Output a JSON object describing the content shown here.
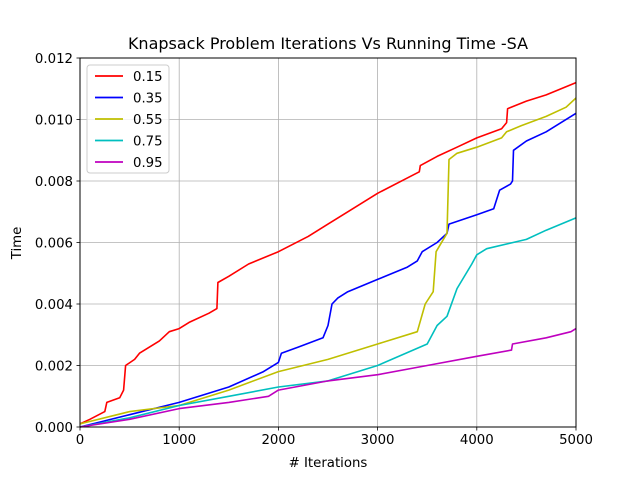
{
  "chart_data": {
    "type": "line",
    "title": "Knapsack Problem Iterations Vs Running Time -SA",
    "xlabel": "# Iterations",
    "ylabel": "Time",
    "xlim": [
      0,
      5000
    ],
    "ylim": [
      0,
      0.012
    ],
    "xticks": [
      "0",
      "1000",
      "2000",
      "3000",
      "4000",
      "5000"
    ],
    "yticks": [
      "0.000",
      "0.002",
      "0.004",
      "0.006",
      "0.008",
      "0.010",
      "0.012"
    ],
    "grid": true,
    "legend_position": "top-left",
    "series": [
      {
        "name": "0.15",
        "color": "#ff0000",
        "points": [
          [
            0,
            0.0001
          ],
          [
            100,
            0.00025
          ],
          [
            250,
            0.0005
          ],
          [
            270,
            0.0008
          ],
          [
            400,
            0.00095
          ],
          [
            440,
            0.0012
          ],
          [
            460,
            0.002
          ],
          [
            550,
            0.0022
          ],
          [
            600,
            0.0024
          ],
          [
            800,
            0.0028
          ],
          [
            900,
            0.0031
          ],
          [
            1000,
            0.0032
          ],
          [
            1100,
            0.0034
          ],
          [
            1300,
            0.0037
          ],
          [
            1380,
            0.00385
          ],
          [
            1390,
            0.0047
          ],
          [
            1500,
            0.0049
          ],
          [
            1700,
            0.0053
          ],
          [
            2000,
            0.0057
          ],
          [
            2300,
            0.0062
          ],
          [
            2500,
            0.0066
          ],
          [
            2700,
            0.007
          ],
          [
            3000,
            0.0076
          ],
          [
            3300,
            0.0081
          ],
          [
            3420,
            0.0083
          ],
          [
            3430,
            0.0085
          ],
          [
            3600,
            0.0088
          ],
          [
            3800,
            0.0091
          ],
          [
            4000,
            0.0094
          ],
          [
            4250,
            0.0097
          ],
          [
            4300,
            0.0099
          ],
          [
            4310,
            0.01035
          ],
          [
            4500,
            0.0106
          ],
          [
            4700,
            0.0108
          ],
          [
            5000,
            0.0112
          ]
        ]
      },
      {
        "name": "0.35",
        "color": "#0000ff",
        "points": [
          [
            0,
            0
          ],
          [
            500,
            0.0004
          ],
          [
            1000,
            0.0008
          ],
          [
            1500,
            0.0013
          ],
          [
            1850,
            0.0018
          ],
          [
            2000,
            0.0021
          ],
          [
            2030,
            0.0024
          ],
          [
            2200,
            0.0026
          ],
          [
            2450,
            0.0029
          ],
          [
            2500,
            0.0033
          ],
          [
            2540,
            0.004
          ],
          [
            2600,
            0.0042
          ],
          [
            2700,
            0.0044
          ],
          [
            3000,
            0.0048
          ],
          [
            3300,
            0.0052
          ],
          [
            3400,
            0.0054
          ],
          [
            3450,
            0.0057
          ],
          [
            3600,
            0.006
          ],
          [
            3700,
            0.0063
          ],
          [
            3720,
            0.0066
          ],
          [
            4000,
            0.0069
          ],
          [
            4170,
            0.0071
          ],
          [
            4230,
            0.0077
          ],
          [
            4340,
            0.0079
          ],
          [
            4360,
            0.008
          ],
          [
            4370,
            0.009
          ],
          [
            4500,
            0.0093
          ],
          [
            4700,
            0.0096
          ],
          [
            5000,
            0.0102
          ]
        ]
      },
      {
        "name": "0.55",
        "color": "#bfbf00",
        "points": [
          [
            0,
            0.0001
          ],
          [
            500,
            0.0005
          ],
          [
            1000,
            0.0007
          ],
          [
            1500,
            0.0012
          ],
          [
            2000,
            0.0018
          ],
          [
            2500,
            0.0022
          ],
          [
            3000,
            0.0027
          ],
          [
            3400,
            0.0031
          ],
          [
            3480,
            0.004
          ],
          [
            3560,
            0.0044
          ],
          [
            3590,
            0.0057
          ],
          [
            3700,
            0.0063
          ],
          [
            3720,
            0.0087
          ],
          [
            3800,
            0.0089
          ],
          [
            4000,
            0.0091
          ],
          [
            4250,
            0.0094
          ],
          [
            4300,
            0.0096
          ],
          [
            4450,
            0.0098
          ],
          [
            4700,
            0.0101
          ],
          [
            4900,
            0.0104
          ],
          [
            5000,
            0.0107
          ]
        ]
      },
      {
        "name": "0.75",
        "color": "#00bfbf",
        "points": [
          [
            0,
            0
          ],
          [
            500,
            0.0003
          ],
          [
            1000,
            0.0007
          ],
          [
            1500,
            0.001
          ],
          [
            2000,
            0.0013
          ],
          [
            2500,
            0.0015
          ],
          [
            3000,
            0.002
          ],
          [
            3500,
            0.0027
          ],
          [
            3600,
            0.0033
          ],
          [
            3700,
            0.0036
          ],
          [
            3800,
            0.0045
          ],
          [
            3950,
            0.0053
          ],
          [
            4000,
            0.0056
          ],
          [
            4100,
            0.0058
          ],
          [
            4500,
            0.0061
          ],
          [
            4700,
            0.0064
          ],
          [
            5000,
            0.0068
          ]
        ]
      },
      {
        "name": "0.95",
        "color": "#bf00bf",
        "points": [
          [
            0,
            0
          ],
          [
            500,
            0.00025
          ],
          [
            1000,
            0.0006
          ],
          [
            1500,
            0.0008
          ],
          [
            1900,
            0.001
          ],
          [
            2000,
            0.0012
          ],
          [
            2500,
            0.0015
          ],
          [
            3000,
            0.0017
          ],
          [
            3500,
            0.002
          ],
          [
            4000,
            0.0023
          ],
          [
            4350,
            0.0025
          ],
          [
            4360,
            0.0027
          ],
          [
            4700,
            0.0029
          ],
          [
            4950,
            0.0031
          ],
          [
            5000,
            0.0032
          ]
        ]
      }
    ]
  }
}
